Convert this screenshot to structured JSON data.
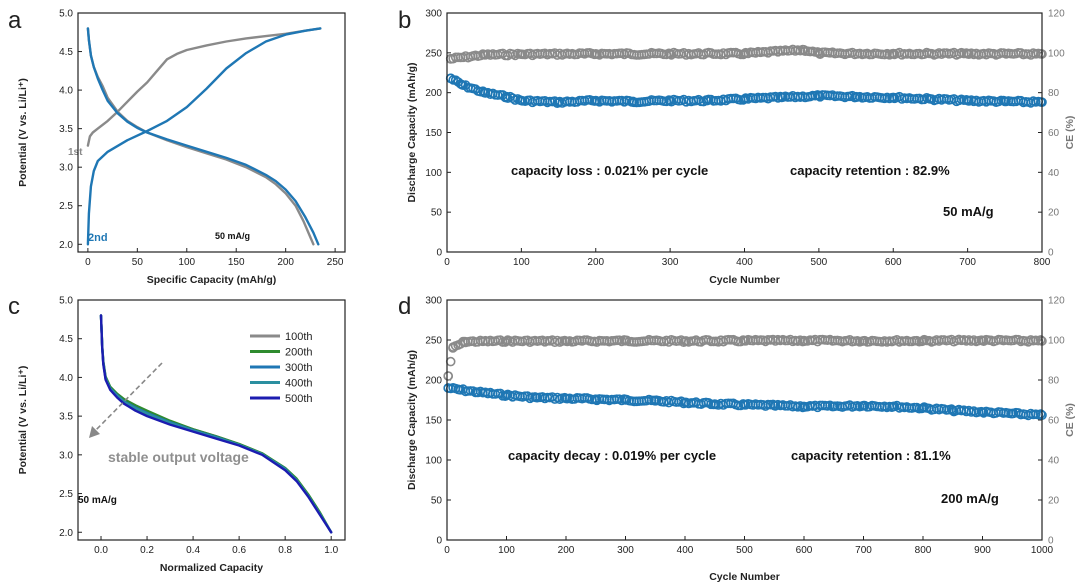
{
  "figure": {
    "series_colors": {
      "gray": "#8a8a8a",
      "blue": "#1f77b4",
      "green": "#2e8b2e",
      "teal": "#2a8fa0",
      "navy": "#1c1cb0",
      "arrow": "#888888"
    }
  },
  "chart_data": [
    {
      "id": "a",
      "type": "line",
      "panel_label": "a",
      "xlabel": "Specific Capacity (mAh/g)",
      "ylabel": "Potential (V vs. Li/Li⁺)",
      "xlim": [
        -10,
        260
      ],
      "ylim": [
        1.9,
        5.0
      ],
      "xticks": [
        0,
        50,
        100,
        150,
        200,
        250
      ],
      "yticks": [
        2.0,
        2.5,
        3.0,
        3.5,
        4.0,
        4.5,
        5.0
      ],
      "ytick_labels": [
        "2.0",
        "2.5",
        "3.0",
        "3.5",
        "4.0",
        "4.5",
        "5.0"
      ],
      "annotations": {
        "first": "1st",
        "second": "2nd",
        "rate": "50 mA/g"
      },
      "series": [
        {
          "name": "1st charge",
          "color": "#8a8a8a",
          "x": [
            0,
            2,
            5,
            10,
            20,
            30,
            40,
            50,
            60,
            70,
            80,
            90,
            100,
            120,
            140,
            160,
            180,
            200,
            220,
            235
          ],
          "y": [
            3.28,
            3.4,
            3.45,
            3.5,
            3.6,
            3.72,
            3.85,
            3.98,
            4.1,
            4.25,
            4.4,
            4.47,
            4.52,
            4.58,
            4.63,
            4.67,
            4.7,
            4.73,
            4.77,
            4.8
          ]
        },
        {
          "name": "1st discharge",
          "color": "#8a8a8a",
          "x": [
            0,
            1,
            3,
            6,
            10,
            15,
            20,
            30,
            40,
            50,
            60,
            80,
            100,
            120,
            140,
            160,
            180,
            190,
            200,
            210,
            218,
            224,
            228
          ],
          "y": [
            4.8,
            4.65,
            4.45,
            4.3,
            4.17,
            4.05,
            3.9,
            3.72,
            3.6,
            3.52,
            3.45,
            3.35,
            3.26,
            3.18,
            3.1,
            3.0,
            2.87,
            2.78,
            2.66,
            2.5,
            2.3,
            2.12,
            2.0
          ]
        },
        {
          "name": "2nd charge",
          "color": "#1f77b4",
          "x": [
            0,
            1,
            3,
            6,
            10,
            20,
            40,
            60,
            80,
            100,
            120,
            140,
            160,
            180,
            200,
            220,
            235
          ],
          "y": [
            2.0,
            2.4,
            2.75,
            2.95,
            3.08,
            3.2,
            3.35,
            3.47,
            3.6,
            3.78,
            4.02,
            4.28,
            4.48,
            4.63,
            4.72,
            4.77,
            4.8
          ]
        },
        {
          "name": "2nd discharge",
          "color": "#1f77b4",
          "x": [
            0,
            1,
            3,
            6,
            10,
            15,
            20,
            30,
            40,
            50,
            60,
            80,
            100,
            120,
            140,
            160,
            180,
            190,
            200,
            210,
            220,
            228,
            233
          ],
          "y": [
            4.8,
            4.65,
            4.45,
            4.3,
            4.15,
            4.0,
            3.86,
            3.7,
            3.59,
            3.51,
            3.45,
            3.36,
            3.28,
            3.2,
            3.12,
            3.03,
            2.9,
            2.82,
            2.71,
            2.56,
            2.35,
            2.15,
            2.0
          ]
        }
      ]
    },
    {
      "id": "b",
      "type": "scatter",
      "panel_label": "b",
      "xlabel": "Cycle Number",
      "ylabel": "Discharge Capacity (mAh/g)",
      "ylabel_right": "CE (%)",
      "xlim": [
        0,
        800
      ],
      "ylim": [
        0,
        300
      ],
      "ylim_right": [
        0,
        120
      ],
      "xticks": [
        0,
        100,
        200,
        300,
        400,
        500,
        600,
        700,
        800
      ],
      "yticks": [
        0,
        50,
        100,
        150,
        200,
        250,
        300
      ],
      "yticks_right": [
        0,
        20,
        40,
        60,
        80,
        100,
        120
      ],
      "annotations": {
        "loss": "capacity loss : 0.021% per cycle",
        "retention": "capacity retention : 82.9%",
        "rate": "50 mA/g"
      },
      "series": [
        {
          "name": "Discharge Capacity",
          "axis": "left",
          "color": "#1f77b4",
          "x": [
            5,
            20,
            50,
            80,
            100,
            150,
            200,
            250,
            300,
            350,
            400,
            450,
            500,
            550,
            600,
            650,
            700,
            750,
            800
          ],
          "y": [
            218,
            210,
            200,
            195,
            190,
            188,
            190,
            189,
            190,
            190,
            192,
            194,
            196,
            195,
            194,
            192,
            190,
            189,
            188
          ]
        },
        {
          "name": "CE",
          "axis": "right",
          "color": "#8a8a8a",
          "x": [
            5,
            50,
            100,
            200,
            300,
            400,
            480,
            500,
            600,
            700,
            800
          ],
          "y": [
            97,
            99,
            99.3,
            99.5,
            99.5,
            99.6,
            101.5,
            99.8,
            99.6,
            99.5,
            99.4
          ]
        }
      ]
    },
    {
      "id": "c",
      "type": "line",
      "panel_label": "c",
      "xlabel": "Normalized Capacity",
      "ylabel": "Potential (V vs. Li/Li⁺)",
      "xlim": [
        -0.1,
        1.06
      ],
      "ylim": [
        1.9,
        5.0
      ],
      "xticks": [
        0.0,
        0.2,
        0.4,
        0.6,
        0.8,
        1.0
      ],
      "xtick_labels": [
        "0.0",
        "0.2",
        "0.4",
        "0.6",
        "0.8",
        "1.0"
      ],
      "yticks": [
        2.0,
        2.5,
        3.0,
        3.5,
        4.0,
        4.5,
        5.0
      ],
      "ytick_labels": [
        "2.0",
        "2.5",
        "3.0",
        "3.5",
        "4.0",
        "4.5",
        "5.0"
      ],
      "annotations": {
        "voltage": "stable output voltage",
        "rate": "50 mA/g"
      },
      "legend_position": "top-right",
      "series": [
        {
          "name": "100th",
          "color": "#8a8a8a",
          "x": [
            0,
            0.005,
            0.01,
            0.02,
            0.04,
            0.07,
            0.1,
            0.15,
            0.2,
            0.3,
            0.4,
            0.5,
            0.6,
            0.7,
            0.8,
            0.85,
            0.9,
            0.95,
            1.0
          ],
          "y": [
            4.8,
            4.4,
            4.2,
            4.0,
            3.87,
            3.78,
            3.7,
            3.62,
            3.55,
            3.43,
            3.33,
            3.24,
            3.14,
            3.02,
            2.82,
            2.68,
            2.48,
            2.25,
            2.0
          ]
        },
        {
          "name": "200th",
          "color": "#2e8b2e",
          "x": [
            0,
            0.005,
            0.01,
            0.02,
            0.04,
            0.07,
            0.1,
            0.15,
            0.2,
            0.3,
            0.4,
            0.5,
            0.6,
            0.7,
            0.8,
            0.85,
            0.9,
            0.95,
            1.0
          ],
          "y": [
            4.8,
            4.41,
            4.21,
            4.01,
            3.88,
            3.79,
            3.72,
            3.64,
            3.57,
            3.44,
            3.33,
            3.24,
            3.14,
            3.02,
            2.83,
            2.69,
            2.49,
            2.26,
            2.0
          ]
        },
        {
          "name": "300th",
          "color": "#1f77b4",
          "x": [
            0,
            0.005,
            0.01,
            0.02,
            0.04,
            0.07,
            0.1,
            0.15,
            0.2,
            0.3,
            0.4,
            0.5,
            0.6,
            0.7,
            0.8,
            0.85,
            0.9,
            0.95,
            1.0
          ],
          "y": [
            4.8,
            4.4,
            4.19,
            3.99,
            3.86,
            3.77,
            3.69,
            3.61,
            3.54,
            3.42,
            3.32,
            3.23,
            3.13,
            3.01,
            2.82,
            2.67,
            2.47,
            2.24,
            2.0
          ]
        },
        {
          "name": "400th",
          "color": "#2a8fa0",
          "x": [
            0,
            0.005,
            0.01,
            0.02,
            0.04,
            0.07,
            0.1,
            0.15,
            0.2,
            0.3,
            0.4,
            0.5,
            0.6,
            0.7,
            0.8,
            0.85,
            0.9,
            0.95,
            1.0
          ],
          "y": [
            4.8,
            4.39,
            4.18,
            3.98,
            3.85,
            3.76,
            3.68,
            3.6,
            3.53,
            3.41,
            3.31,
            3.22,
            3.13,
            3.01,
            2.81,
            2.67,
            2.47,
            2.24,
            2.0
          ]
        },
        {
          "name": "500th",
          "color": "#1c1cb0",
          "x": [
            0,
            0.005,
            0.01,
            0.02,
            0.04,
            0.07,
            0.1,
            0.15,
            0.2,
            0.3,
            0.4,
            0.5,
            0.6,
            0.7,
            0.8,
            0.85,
            0.9,
            0.95,
            1.0
          ],
          "y": [
            4.8,
            4.38,
            4.17,
            3.97,
            3.84,
            3.74,
            3.66,
            3.57,
            3.5,
            3.39,
            3.3,
            3.21,
            3.12,
            3.0,
            2.8,
            2.66,
            2.46,
            2.23,
            2.0
          ]
        }
      ]
    },
    {
      "id": "d",
      "type": "scatter",
      "panel_label": "d",
      "xlabel": "Cycle Number",
      "ylabel": "Discharge Capacity (mAh/g)",
      "ylabel_right": "CE (%)",
      "xlim": [
        0,
        1000
      ],
      "ylim": [
        0,
        300
      ],
      "ylim_right": [
        0,
        120
      ],
      "xticks": [
        0,
        100,
        200,
        300,
        400,
        500,
        600,
        700,
        800,
        900,
        1000
      ],
      "yticks": [
        0,
        50,
        100,
        150,
        200,
        250,
        300
      ],
      "yticks_right": [
        0,
        20,
        40,
        60,
        80,
        100,
        120
      ],
      "annotations": {
        "decay": "capacity decay : 0.019% per cycle",
        "retention": "capacity retention : 81.1%",
        "rate": "200 mA/g"
      },
      "series": [
        {
          "name": "Discharge Capacity",
          "axis": "left",
          "color": "#1f77b4",
          "x": [
            2,
            20,
            50,
            100,
            150,
            200,
            250,
            300,
            350,
            400,
            450,
            500,
            550,
            600,
            650,
            700,
            750,
            800,
            850,
            900,
            950,
            1000
          ],
          "y": [
            190,
            188,
            185,
            181,
            178,
            177,
            176,
            175,
            174,
            172,
            170,
            169,
            168,
            167,
            167,
            168,
            167,
            165,
            162,
            160,
            158,
            156
          ]
        },
        {
          "name": "CE",
          "axis": "right",
          "color": "#8a8a8a",
          "x": [
            2,
            10,
            30,
            100,
            200,
            300,
            400,
            500,
            600,
            700,
            800,
            900,
            1000
          ],
          "y": [
            82,
            96,
            99.2,
            99.5,
            99.4,
            99.6,
            99.5,
            99.6,
            99.7,
            99.6,
            99.6,
            99.8,
            99.5
          ]
        }
      ]
    }
  ]
}
